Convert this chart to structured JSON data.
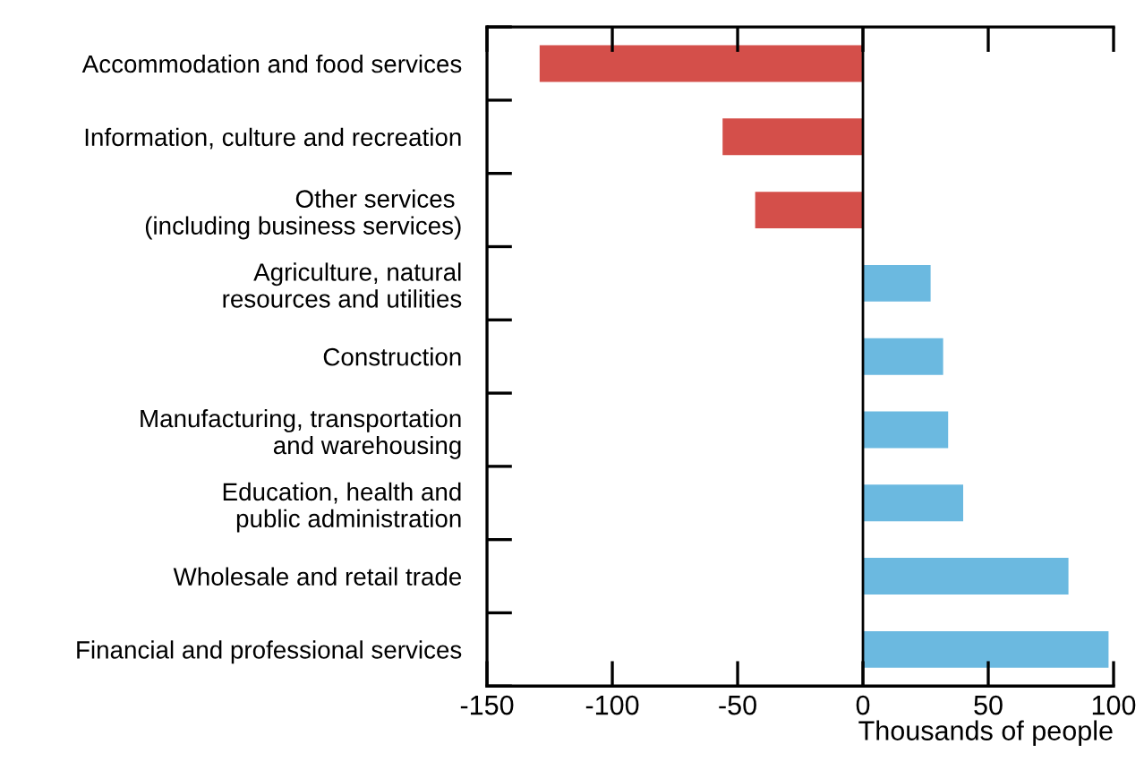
{
  "chart_data": {
    "type": "bar",
    "orientation": "horizontal",
    "xlabel": "Thousands of people",
    "categories": [
      "Accommodation and food services",
      "Information, culture and recreation",
      "Other services \n(including business services)",
      "Agriculture, natural\nresources and utilities",
      "Construction",
      "Manufacturing, transportation\nand warehousing",
      "Education, health and\npublic administration",
      "Wholesale and retail trade",
      "Financial and professional services"
    ],
    "values": [
      -129,
      -56,
      -43,
      27,
      32,
      34,
      40,
      82,
      98
    ],
    "colors": [
      "#d44f4a",
      "#d44f4a",
      "#d44f4a",
      "#6bb9e0",
      "#6bb9e0",
      "#6bb9e0",
      "#6bb9e0",
      "#6bb9e0",
      "#6bb9e0"
    ],
    "xlim": [
      -150,
      100
    ],
    "xticks": [
      -150,
      -100,
      -50,
      0,
      50,
      100
    ],
    "ref_lines": [
      {
        "axis": "x",
        "value": 0,
        "color": "#000000"
      }
    ],
    "grid": false
  }
}
